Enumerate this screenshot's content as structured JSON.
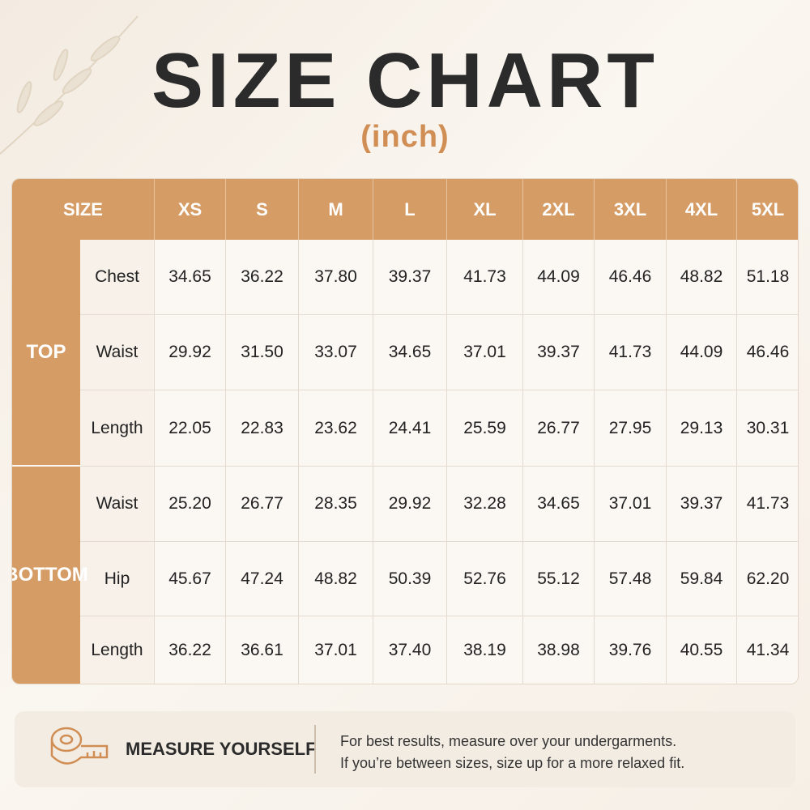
{
  "header": {
    "title": "SIZE CHART",
    "subtitle": "(inch)"
  },
  "table": {
    "corner": "SIZE",
    "sizes": [
      "XS",
      "S",
      "M",
      "L",
      "XL",
      "2XL",
      "3XL",
      "4XL",
      "5XL"
    ],
    "groups": [
      {
        "name": "TOP",
        "rows": [
          {
            "label": "Chest",
            "values": [
              "34.65",
              "36.22",
              "37.80",
              "39.37",
              "41.73",
              "44.09",
              "46.46",
              "48.82",
              "51.18"
            ]
          },
          {
            "label": "Waist",
            "values": [
              "29.92",
              "31.50",
              "33.07",
              "34.65",
              "37.01",
              "39.37",
              "41.73",
              "44.09",
              "46.46"
            ]
          },
          {
            "label": "Length",
            "values": [
              "22.05",
              "22.83",
              "23.62",
              "24.41",
              "25.59",
              "26.77",
              "27.95",
              "29.13",
              "30.31"
            ]
          }
        ]
      },
      {
        "name": "BOTTOM",
        "rows": [
          {
            "label": "Waist",
            "values": [
              "25.20",
              "26.77",
              "28.35",
              "29.92",
              "32.28",
              "34.65",
              "37.01",
              "39.37",
              "41.73"
            ]
          },
          {
            "label": "Hip",
            "values": [
              "45.67",
              "47.24",
              "48.82",
              "50.39",
              "52.76",
              "55.12",
              "57.48",
              "59.84",
              "62.20"
            ]
          },
          {
            "label": "Length",
            "values": [
              "36.22",
              "36.61",
              "37.01",
              "37.40",
              "38.19",
              "38.98",
              "39.76",
              "40.55",
              "41.34"
            ]
          }
        ]
      }
    ]
  },
  "footer": {
    "heading": "MEASURE YOURSELF",
    "lines": [
      "For best results, measure over your undergarments.",
      "If you’re between sizes, size up for a more relaxed fit."
    ]
  }
}
